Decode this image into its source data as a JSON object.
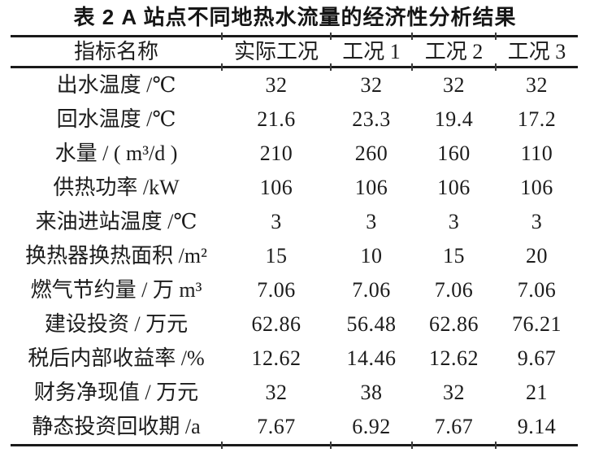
{
  "colors": {
    "ink": "#1c1c1c",
    "rule": "#1a1a1a",
    "page_background": "#ffffff"
  },
  "table": {
    "title": "表 2  A 站点不同地热水流量的经济性分析结果",
    "columns": [
      "指标名称",
      "实际工况",
      "工况 1",
      "工况 2",
      "工况 3"
    ],
    "rows": [
      {
        "label": "出水温度 /℃",
        "values": [
          "32",
          "32",
          "32",
          "32"
        ]
      },
      {
        "label": "回水温度 /℃",
        "values": [
          "21.6",
          "23.3",
          "19.4",
          "17.2"
        ]
      },
      {
        "label": "水量 / ( m³/d )",
        "values": [
          "210",
          "260",
          "160",
          "110"
        ]
      },
      {
        "label": "供热功率 /kW",
        "values": [
          "106",
          "106",
          "106",
          "106"
        ]
      },
      {
        "label": "来油进站温度 /℃",
        "values": [
          "3",
          "3",
          "3",
          "3"
        ]
      },
      {
        "label": "换热器换热面积 /m²",
        "values": [
          "15",
          "10",
          "15",
          "20"
        ]
      },
      {
        "label": "燃气节约量 / 万 m³",
        "values": [
          "7.06",
          "7.06",
          "7.06",
          "7.06"
        ]
      },
      {
        "label": "建设投资 / 万元",
        "values": [
          "62.86",
          "56.48",
          "62.86",
          "76.21"
        ]
      },
      {
        "label": "税后内部收益率 /%",
        "values": [
          "12.62",
          "14.46",
          "12.62",
          "9.67"
        ]
      },
      {
        "label": "财务净现值 / 万元",
        "values": [
          "32",
          "38",
          "32",
          "21"
        ]
      },
      {
        "label": "静态投资回收期 /a",
        "values": [
          "7.67",
          "6.92",
          "7.67",
          "9.14"
        ]
      }
    ]
  }
}
